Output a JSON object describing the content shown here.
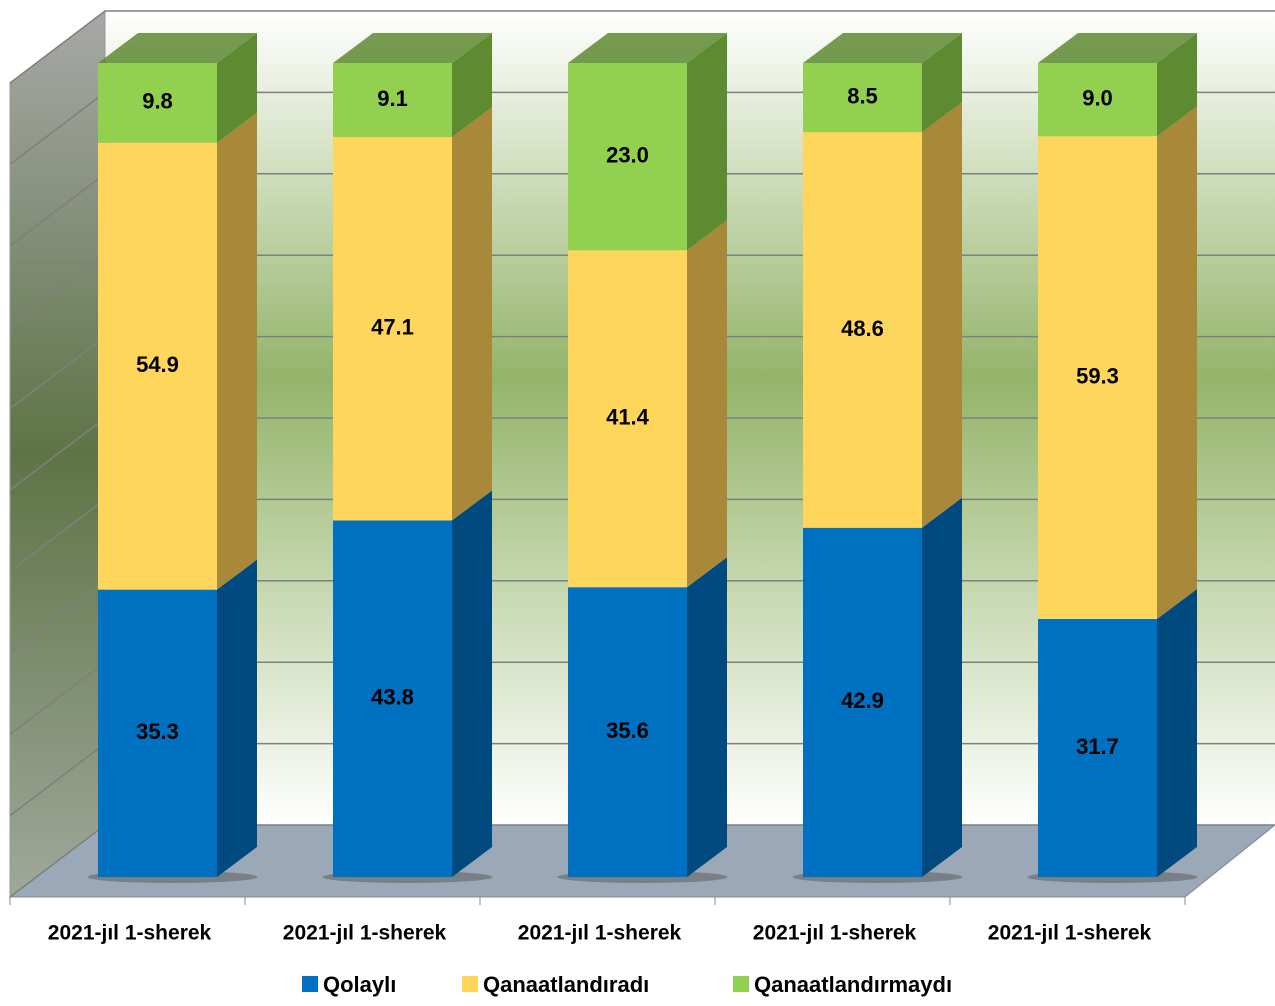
{
  "chart_data": {
    "type": "bar3d_stacked",
    "categories": [
      "2021-jıl 1-sherek",
      "2021-jıl 1-sherek",
      "2021-jıl 1-sherek",
      "2021-jıl 1-sherek",
      "2021-jıl 1-sherek"
    ],
    "series": [
      {
        "name": "Qolaylı",
        "color": "#0070c0",
        "side_color": "#004a80",
        "values": [
          35.3,
          43.8,
          35.6,
          42.9,
          31.7
        ],
        "value_labels": [
          "35.3",
          "43.8",
          "35.6",
          "42.9",
          "31.7"
        ]
      },
      {
        "name": "Qanaatlandıradı",
        "color": "#ffd65c",
        "side_color": "#a8893a",
        "values": [
          54.9,
          47.1,
          41.4,
          48.6,
          59.3
        ],
        "value_labels": [
          "54.9",
          "47.1",
          "41.4",
          "48.6",
          "59.3"
        ]
      },
      {
        "name": "Qanaatlandırmaydı",
        "color": "#92d050",
        "side_color": "#5e8a32",
        "values": [
          9.8,
          9.1,
          23.0,
          8.5,
          9.0
        ],
        "value_labels": [
          "9.8",
          "9.1",
          "23.0",
          "8.5",
          "9.0"
        ]
      }
    ],
    "ylim": [
      0,
      100
    ],
    "yticks": [
      0,
      10,
      20,
      30,
      40,
      50,
      60,
      70,
      80,
      90,
      100
    ],
    "grid": true,
    "legend": "bottom"
  }
}
